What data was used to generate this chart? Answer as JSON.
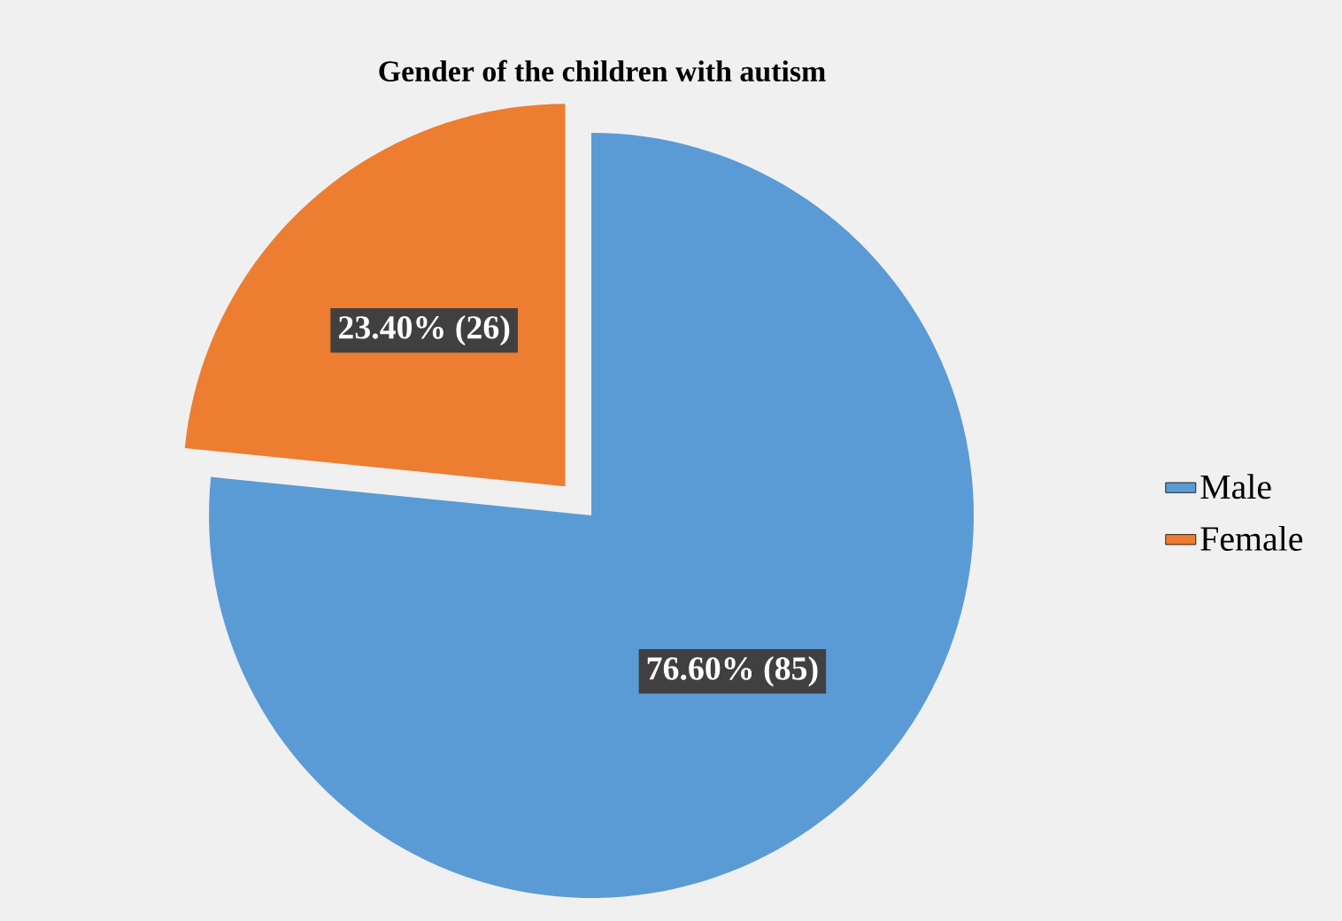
{
  "chart_data": {
    "type": "pie",
    "title": "Gender of the children with autism",
    "categories": [
      "Male",
      "Female"
    ],
    "values": [
      76.6,
      23.4
    ],
    "colors": [
      "#5b9bd5",
      "#ed7d31"
    ],
    "value_labels": [
      "76.60% (85)",
      "23.40% (26)"
    ],
    "legend": "right"
  }
}
